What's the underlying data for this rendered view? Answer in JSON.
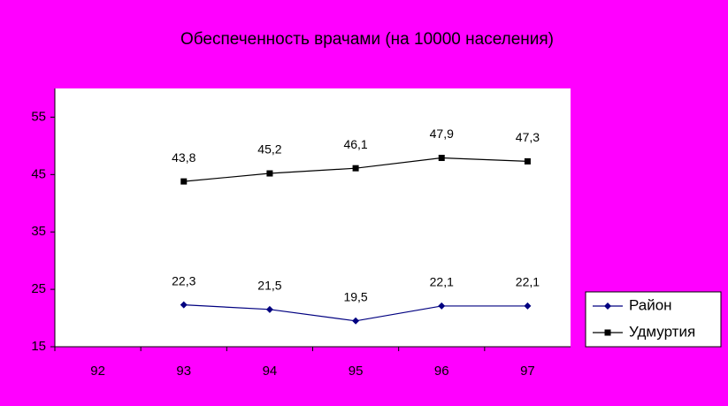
{
  "chart_data": {
    "type": "line",
    "title": "Обеспеченность врачами (на 10000 населения)",
    "categories": [
      "92",
      "93",
      "94",
      "95",
      "96",
      "97"
    ],
    "series": [
      {
        "name": "Район",
        "color": "#000080",
        "marker": "diamond",
        "values": [
          null,
          22.3,
          21.5,
          19.5,
          22.1,
          22.1
        ],
        "value_labels": [
          null,
          "22,3",
          "21,5",
          "19,5",
          "22,1",
          "22,1"
        ]
      },
      {
        "name": "Удмуртия",
        "color": "#000000",
        "marker": "square",
        "values": [
          null,
          43.8,
          45.2,
          46.1,
          47.9,
          47.3
        ],
        "value_labels": [
          null,
          "43,8",
          "45,2",
          "46,1",
          "47,9",
          "47,3"
        ]
      }
    ],
    "ylim": [
      15,
      60
    ],
    "yticks": [
      15,
      25,
      35,
      45,
      55
    ],
    "legend": "right"
  }
}
